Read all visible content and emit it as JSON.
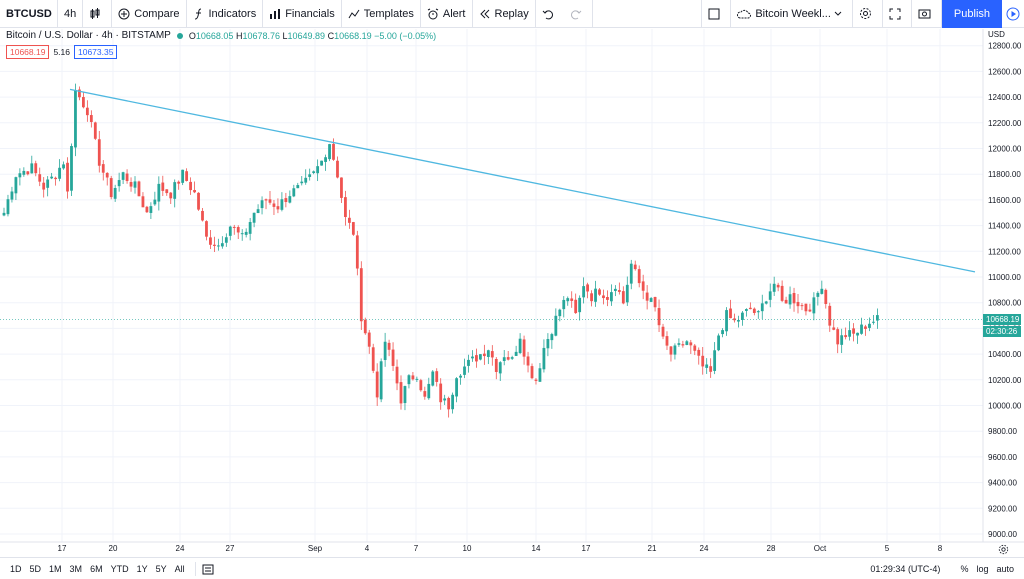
{
  "toolbar": {
    "symbol": "BTCUSD",
    "interval": "4h",
    "compare": "Compare",
    "indicators": "Indicators",
    "financials": "Financials",
    "templates": "Templates",
    "alert": "Alert",
    "replay": "Replay",
    "layout_name": "Bitcoin Weekl...",
    "publish": "Publish"
  },
  "legend": {
    "title": "Bitcoin / U.S. Dollar · 4h · BITSTAMP",
    "o_label": "O",
    "o": "10668.05",
    "h_label": "H",
    "h": "10678.76",
    "l_label": "L",
    "l": "10649.89",
    "c_label": "C",
    "c": "10668.19",
    "change": "−5.00 (−0.05%)",
    "bid": "10668.19",
    "spread": "5.16",
    "ask": "10673.35"
  },
  "price_scale": {
    "currency": "USD",
    "ticks": [
      "12800.00",
      "12600.00",
      "12400.00",
      "12200.00",
      "12000.00",
      "11800.00",
      "11600.00",
      "11400.00",
      "11200.00",
      "11000.00",
      "10800.00",
      "10600.00",
      "10400.00",
      "10200.00",
      "10000.00",
      "9800.00",
      "9600.00",
      "9400.00",
      "9200.00",
      "9000.00"
    ],
    "last_price": "10668.19",
    "countdown": "02:30:26"
  },
  "time_axis": {
    "ticks": [
      "17",
      "20",
      "24",
      "27",
      "Sep",
      "4",
      "7",
      "10",
      "14",
      "17",
      "21",
      "24",
      "28",
      "Oct",
      "5",
      "8"
    ]
  },
  "bottombar": {
    "ranges": [
      "1D",
      "5D",
      "1M",
      "3M",
      "6M",
      "YTD",
      "1Y",
      "5Y",
      "All"
    ],
    "clock": "01:29:34 (UTC-4)",
    "percent": "%",
    "log": "log",
    "auto": "auto"
  },
  "colors": {
    "up": "#26a69a",
    "down": "#ef5350",
    "trendline": "#4fb8e0",
    "accent": "#2962ff"
  },
  "chart_data": {
    "type": "candlestick",
    "trendline": {
      "start": 12460,
      "end": 11040
    },
    "ylim": [
      9000,
      12800
    ],
    "anchors": [
      [
        0,
        11500
      ],
      [
        3,
        11800
      ],
      [
        7,
        11850
      ],
      [
        10,
        11700
      ],
      [
        13,
        11800
      ],
      [
        15,
        11900
      ],
      [
        16,
        11650
      ],
      [
        18,
        12450
      ],
      [
        21,
        12300
      ],
      [
        24,
        11900
      ],
      [
        27,
        11650
      ],
      [
        30,
        11800
      ],
      [
        33,
        11700
      ],
      [
        36,
        11500
      ],
      [
        39,
        11700
      ],
      [
        42,
        11650
      ],
      [
        45,
        11800
      ],
      [
        48,
        11650
      ],
      [
        51,
        11300
      ],
      [
        54,
        11250
      ],
      [
        57,
        11400
      ],
      [
        60,
        11300
      ],
      [
        63,
        11500
      ],
      [
        66,
        11600
      ],
      [
        69,
        11550
      ],
      [
        72,
        11650
      ],
      [
        75,
        11700
      ],
      [
        78,
        11800
      ],
      [
        80,
        11900
      ],
      [
        82,
        12050
      ],
      [
        84,
        11800
      ],
      [
        86,
        11450
      ],
      [
        88,
        11350
      ],
      [
        90,
        10700
      ],
      [
        92,
        10450
      ],
      [
        94,
        10100
      ],
      [
        96,
        10500
      ],
      [
        98,
        10300
      ],
      [
        100,
        10050
      ],
      [
        102,
        10200
      ],
      [
        104,
        10250
      ],
      [
        106,
        10050
      ],
      [
        108,
        10250
      ],
      [
        110,
        10050
      ],
      [
        112,
        10000
      ],
      [
        114,
        10250
      ],
      [
        116,
        10300
      ],
      [
        118,
        10350
      ],
      [
        120,
        10400
      ],
      [
        122,
        10450
      ],
      [
        124,
        10300
      ],
      [
        126,
        10400
      ],
      [
        128,
        10350
      ],
      [
        130,
        10550
      ],
      [
        132,
        10300
      ],
      [
        134,
        10200
      ],
      [
        136,
        10450
      ],
      [
        138,
        10600
      ],
      [
        140,
        10750
      ],
      [
        142,
        10850
      ],
      [
        144,
        10700
      ],
      [
        146,
        10950
      ],
      [
        148,
        10850
      ],
      [
        150,
        10900
      ],
      [
        152,
        10850
      ],
      [
        154,
        10950
      ],
      [
        156,
        10800
      ],
      [
        158,
        11100
      ],
      [
        160,
        10950
      ],
      [
        162,
        10850
      ],
      [
        164,
        10750
      ],
      [
        166,
        10500
      ],
      [
        168,
        10400
      ],
      [
        170,
        10450
      ],
      [
        172,
        10500
      ],
      [
        174,
        10400
      ],
      [
        176,
        10300
      ],
      [
        178,
        10250
      ],
      [
        180,
        10550
      ],
      [
        182,
        10700
      ],
      [
        184,
        10650
      ],
      [
        186,
        10700
      ],
      [
        188,
        10750
      ],
      [
        190,
        10700
      ],
      [
        192,
        10850
      ],
      [
        194,
        10950
      ],
      [
        196,
        10800
      ],
      [
        198,
        10850
      ],
      [
        200,
        10800
      ],
      [
        202,
        10750
      ],
      [
        204,
        10800
      ],
      [
        206,
        10950
      ],
      [
        208,
        10650
      ],
      [
        210,
        10500
      ],
      [
        212,
        10550
      ],
      [
        214,
        10550
      ],
      [
        216,
        10600
      ],
      [
        218,
        10650
      ],
      [
        220,
        10668
      ]
    ]
  }
}
